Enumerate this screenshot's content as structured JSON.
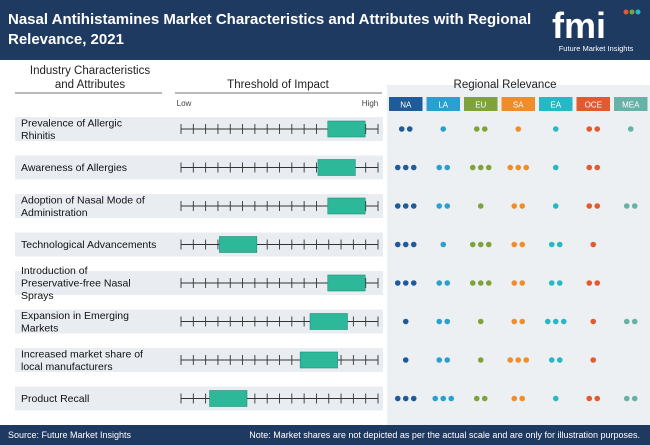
{
  "header": {
    "title": "Nasal Antihistamines Market Characteristics and Attributes with Regional Relevance, 2021",
    "logo_text": "fmi",
    "logo_subtitle": "Future Market Insights"
  },
  "footer": {
    "source": "Source: Future Market Insights",
    "note": "Note: Market shares are not depicted as per the actual scale and are only for illustration purposes."
  },
  "chart_data": {
    "type": "table",
    "column_headers": {
      "attributes": "Industry Characteristics and Attributes",
      "threshold": "Threshold of Impact",
      "regional": "Regional Relevance"
    },
    "scale_labels": {
      "low": "Low",
      "high": "High"
    },
    "regions": [
      {
        "name": "NA",
        "color": "#1f5b99"
      },
      {
        "name": "LA",
        "color": "#2a9fd0"
      },
      {
        "name": "EU",
        "color": "#7fa33a"
      },
      {
        "name": "SA",
        "color": "#f08c2a"
      },
      {
        "name": "EA",
        "color": "#27b8c8"
      },
      {
        "name": "OCE",
        "color": "#e35a2f"
      },
      {
        "name": "MEA",
        "color": "#66b2a6"
      }
    ],
    "rows": [
      {
        "label": "Prevalence of Allergic Rhinitis",
        "impact": [
          0.745,
          0.935
        ],
        "dots": [
          2,
          1,
          2,
          1,
          1,
          2,
          1
        ]
      },
      {
        "label": "Awareness of Allergies",
        "impact": [
          0.695,
          0.885
        ],
        "dots": [
          3,
          2,
          3,
          3,
          1,
          2,
          0
        ]
      },
      {
        "label": "Adoption of Nasal Mode of Administration",
        "impact": [
          0.745,
          0.935
        ],
        "dots": [
          3,
          2,
          1,
          2,
          1,
          2,
          2
        ]
      },
      {
        "label": "Technological Advancements",
        "impact": [
          0.195,
          0.385
        ],
        "dots": [
          3,
          1,
          3,
          2,
          2,
          1,
          0
        ]
      },
      {
        "label": "Introduction of Preservative-free Nasal Sprays",
        "impact": [
          0.745,
          0.935
        ],
        "dots": [
          3,
          2,
          3,
          2,
          2,
          2,
          0
        ]
      },
      {
        "label": "Expansion in Emerging Markets",
        "impact": [
          0.655,
          0.845
        ],
        "dots": [
          1,
          2,
          1,
          2,
          3,
          1,
          2
        ]
      },
      {
        "label": "Increased market share of local manufacturers",
        "impact": [
          0.605,
          0.795
        ],
        "dots": [
          1,
          2,
          1,
          3,
          2,
          1,
          0
        ]
      },
      {
        "label": "Product Recall",
        "impact": [
          0.145,
          0.335
        ],
        "dots": [
          3,
          3,
          2,
          2,
          1,
          2,
          2
        ]
      }
    ]
  }
}
